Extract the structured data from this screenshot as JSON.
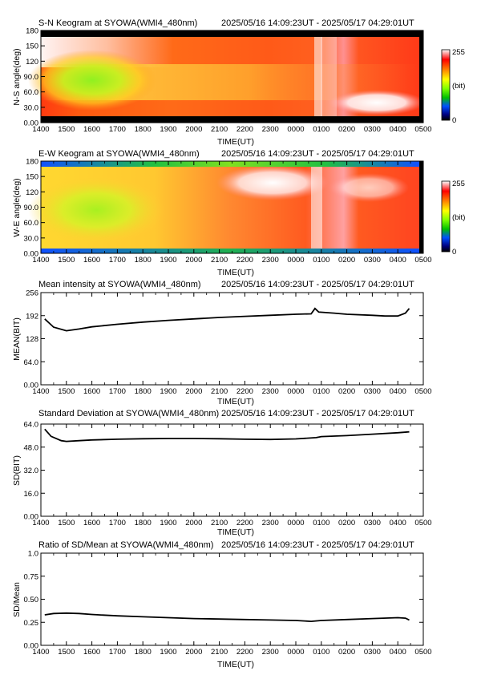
{
  "header": {
    "station": "SYOWA",
    "camera": "WMI4_480nm",
    "time_range": "2025/05/16 14:09:23UT - 2025/05/17 04:29:01UT"
  },
  "x_axis": {
    "label": "TIME(UT)",
    "ticks": [
      "1400",
      "1500",
      "1600",
      "1700",
      "1800",
      "1900",
      "2000",
      "2100",
      "2200",
      "2300",
      "0000",
      "0100",
      "0200",
      "0300",
      "0400",
      "0500"
    ],
    "range_hours": [
      14,
      29
    ],
    "data_end_hours": 28.48
  },
  "colorbar": {
    "max_label": "255",
    "unit_label": "(bit)",
    "min_label": "0"
  },
  "panels": {
    "sn": {
      "title": "S-N Keogram at SYOWA(WMI4_480nm)",
      "time_range": "2025/05/16 14:09:23UT - 2025/05/17 04:29:01UT",
      "ylabel": "N-S angle(deg)",
      "yticks": [
        "0.00",
        "30.0",
        "60.0",
        "90.0",
        "120",
        "150",
        "180"
      ],
      "xlabel": "TIME(UT)"
    },
    "ew": {
      "title": "E-W Keogram at SYOWA(WMI4_480nm)",
      "time_range": "2025/05/16 14:09:23UT - 2025/05/17 04:29:01UT",
      "ylabel": "W-E angle(deg)",
      "yticks": [
        "0.00",
        "30.0",
        "60.0",
        "90.0",
        "120",
        "150",
        "180"
      ],
      "xlabel": "TIME(UT)"
    },
    "mean": {
      "title": "Mean intensity at SYOWA(WMI4_480nm)",
      "time_range": "2025/05/16 14:09:23UT - 2025/05/17 04:29:01UT",
      "ylabel": "MEAN(BIT)",
      "yticks": [
        "0.00",
        "64.0",
        "128",
        "192",
        "256"
      ],
      "xlabel": "TIME(UT)"
    },
    "sd": {
      "title": "Standard Deviation at SYOWA(WMI4_480nm)",
      "time_range": "2025/05/16 14:09:23UT - 2025/05/17 04:29:01UT",
      "ylabel": "SD(BIT)",
      "yticks": [
        "0.00",
        "16.0",
        "32.0",
        "48.0",
        "64.0"
      ],
      "xlabel": "TIME(UT)"
    },
    "ratio": {
      "title": "Ratio of SD/Mean at SYOWA(WMI4_480nm)",
      "time_range": "2025/05/16 14:09:23UT - 2025/05/17 04:29:01UT",
      "ylabel": "SD/Mean",
      "yticks": [
        "0.00",
        "0.25",
        "0.50",
        "0.75",
        "1.0"
      ],
      "xlabel": "TIME(UT)"
    }
  },
  "chart_data": [
    {
      "type": "heatmap",
      "title": "S-N Keogram at SYOWA(WMI4_480nm)",
      "xlabel": "TIME(UT)",
      "ylabel": "N-S angle(deg)",
      "ylim": [
        0,
        180
      ],
      "clim": [
        0,
        255
      ],
      "colormap": "rainbow (black-blue-green-yellow-red-white)"
    },
    {
      "type": "heatmap",
      "title": "E-W Keogram at SYOWA(WMI4_480nm)",
      "xlabel": "TIME(UT)",
      "ylabel": "W-E angle(deg)",
      "ylim": [
        0,
        180
      ],
      "clim": [
        0,
        255
      ],
      "colormap": "rainbow (black-blue-green-yellow-red-white)"
    },
    {
      "type": "line",
      "title": "Mean intensity at SYOWA(WMI4_480nm)",
      "xlabel": "TIME(UT)",
      "ylabel": "MEAN(BIT)",
      "ylim": [
        0,
        256
      ],
      "x": [
        14.15,
        14.5,
        15.0,
        15.5,
        16.0,
        17.0,
        18.0,
        19.0,
        20.0,
        21.0,
        22.0,
        23.0,
        24.0,
        24.6,
        24.75,
        24.9,
        25.5,
        26.0,
        27.0,
        27.5,
        28.0,
        28.3,
        28.45
      ],
      "y": [
        183,
        160,
        150,
        155,
        161,
        168,
        174,
        179,
        183,
        187,
        190,
        193,
        196,
        197,
        212,
        202,
        199,
        196,
        193,
        191,
        191,
        199,
        212
      ]
    },
    {
      "type": "line",
      "title": "Standard Deviation at SYOWA(WMI4_480nm)",
      "xlabel": "TIME(UT)",
      "ylabel": "SD(BIT)",
      "ylim": [
        0,
        64
      ],
      "x": [
        14.15,
        14.4,
        14.8,
        15.0,
        15.5,
        16.0,
        17.0,
        18.0,
        19.0,
        20.0,
        21.0,
        22.0,
        23.0,
        24.0,
        24.8,
        25.0,
        26.0,
        27.0,
        28.0,
        28.45
      ],
      "y": [
        60.5,
        55.5,
        52.5,
        52.0,
        52.5,
        53.0,
        53.5,
        53.8,
        54.0,
        54.0,
        53.8,
        53.5,
        53.3,
        53.7,
        54.6,
        55.3,
        56.0,
        57.0,
        58.0,
        58.6
      ]
    },
    {
      "type": "line",
      "title": "Ratio of SD/Mean at SYOWA(WMI4_480nm)",
      "xlabel": "TIME(UT)",
      "ylabel": "SD/Mean",
      "ylim": [
        0,
        1.0
      ],
      "x": [
        14.15,
        14.5,
        15.0,
        15.5,
        16.0,
        17.0,
        18.0,
        19.0,
        20.0,
        21.0,
        22.0,
        23.0,
        24.0,
        24.6,
        25.0,
        26.0,
        27.0,
        28.0,
        28.3,
        28.45
      ],
      "y": [
        0.33,
        0.345,
        0.35,
        0.345,
        0.335,
        0.32,
        0.31,
        0.3,
        0.29,
        0.285,
        0.28,
        0.275,
        0.27,
        0.26,
        0.27,
        0.28,
        0.29,
        0.3,
        0.295,
        0.275
      ]
    }
  ]
}
